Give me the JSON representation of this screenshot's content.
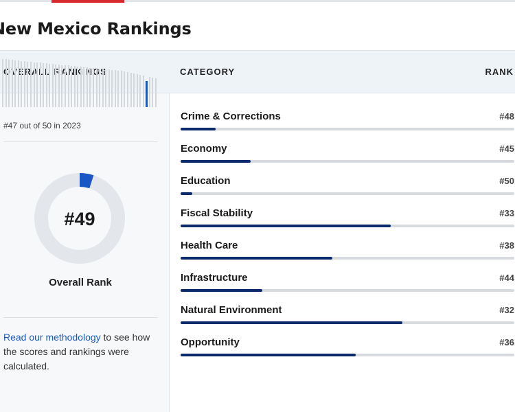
{
  "page": {
    "title": "New Mexico Rankings"
  },
  "overall": {
    "header": "OVERALL RANKINGS",
    "mini_chart_rank": 47,
    "mini_chart_total": 50,
    "caption": "#47 out of 50 in 2023",
    "donut_rank": "#49",
    "donut_label": "Overall Rank",
    "donut_rank_value": 49,
    "donut_total": 50,
    "methodology_link": "Read our methodology",
    "methodology_text": " to see how the scores and rankings were calculated."
  },
  "table": {
    "header_category": "CATEGORY",
    "header_rank": "RANK",
    "rows": [
      {
        "category": "Crime & Corrections",
        "rank": "#48",
        "rank_value": 48
      },
      {
        "category": "Economy",
        "rank": "#45",
        "rank_value": 45
      },
      {
        "category": "Education",
        "rank": "#50",
        "rank_value": 50
      },
      {
        "category": "Fiscal Stability",
        "rank": "#33",
        "rank_value": 33
      },
      {
        "category": "Health Care",
        "rank": "#38",
        "rank_value": 38
      },
      {
        "category": "Infrastructure",
        "rank": "#44",
        "rank_value": 44
      },
      {
        "category": "Natural Environment",
        "rank": "#32",
        "rank_value": 32
      },
      {
        "category": "Opportunity",
        "rank": "#36",
        "rank_value": 36
      }
    ]
  },
  "colors": {
    "accent_red": "#d7282f",
    "bar_fill": "#0b2a6b",
    "highlight_blue": "#1a56c4",
    "link_blue": "#1a5bbf"
  }
}
